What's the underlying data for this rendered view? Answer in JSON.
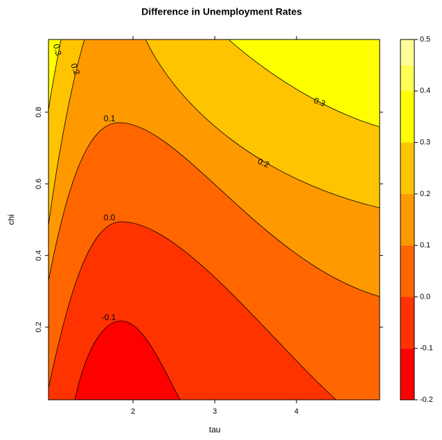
{
  "chart_data": {
    "type": "contour",
    "title": "Difference in Unemployment Rates",
    "xlabel": "tau",
    "ylabel": "chi",
    "xlim": [
      0.966,
      5.017
    ],
    "ylim": [
      -0.003,
      1.003
    ],
    "xticks": [
      2,
      3,
      4
    ],
    "yticks": [
      0.2,
      0.4,
      0.6,
      0.8
    ],
    "levels": [
      -0.1,
      {
        "value": 0,
        "label": "0.0"
      },
      0.1,
      0.2,
      0.3
    ],
    "colorbar": {
      "breaks": [
        -0.2,
        -0.1,
        0,
        0.1,
        0.2,
        0.3,
        0.4,
        0.45,
        0.5
      ],
      "colors": [
        "#FF0000",
        "#FF3300",
        "#FF6600",
        "#FF9900",
        "#FFC400",
        "#FFFF00",
        "#FFFF55",
        "#FFFF99"
      ],
      "ticks": [
        -0.2,
        -0.1,
        {
          "value": 0,
          "label": "0.0"
        },
        0.1,
        0.2,
        0.3,
        0.4,
        0.5
      ]
    }
  }
}
